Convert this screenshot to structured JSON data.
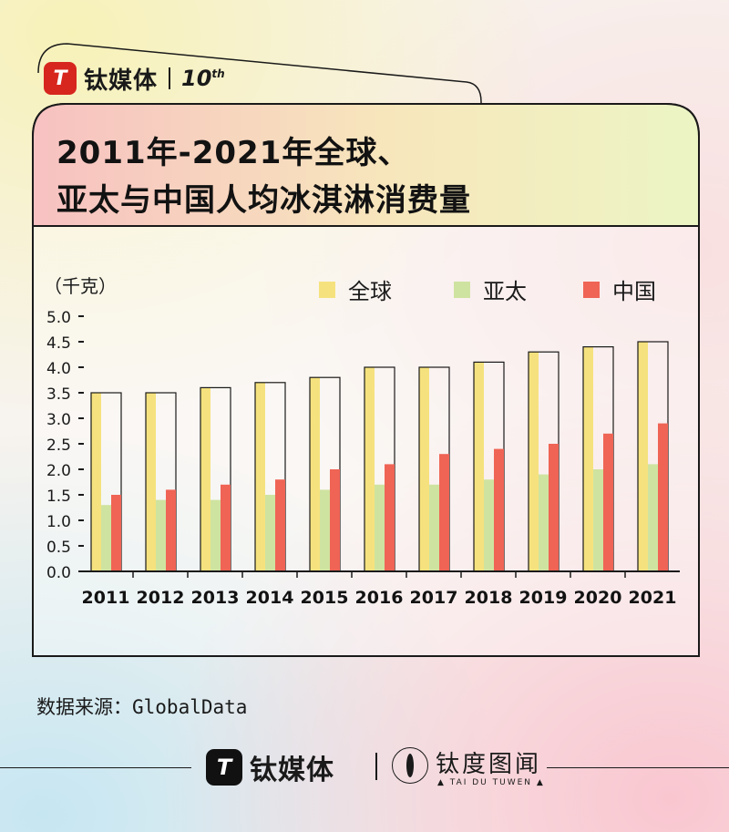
{
  "brand": {
    "name": "钛媒体",
    "anniversary": "10",
    "anniversary_sup": "th",
    "logo_glyph": "T"
  },
  "title": {
    "line1": "2011年-2021年全球、",
    "line2": "亚太与中国人均冰淇淋消费量"
  },
  "source": "数据来源：GlobalData",
  "footer": {
    "brand": "钛媒体",
    "brand2_cn": "钛度图闻",
    "brand2_en": "▲ TAI DU TUWEN ▲"
  },
  "chart_data": {
    "type": "bar",
    "unit_label": "（千克）",
    "categories": [
      "2011",
      "2012",
      "2013",
      "2014",
      "2015",
      "2016",
      "2017",
      "2018",
      "2019",
      "2020",
      "2021"
    ],
    "series": [
      {
        "name": "全球",
        "color": "#f5e27e",
        "values": [
          3.5,
          3.5,
          3.6,
          3.7,
          3.8,
          4.0,
          4.0,
          4.1,
          4.3,
          4.4,
          4.5
        ]
      },
      {
        "name": "亚太",
        "color": "#cfe3a0",
        "values": [
          1.3,
          1.4,
          1.4,
          1.5,
          1.6,
          1.7,
          1.7,
          1.8,
          1.9,
          2.0,
          2.1
        ]
      },
      {
        "name": "中国",
        "color": "#ef6455",
        "values": [
          1.5,
          1.6,
          1.7,
          1.8,
          2.0,
          2.1,
          2.3,
          2.4,
          2.5,
          2.7,
          2.9
        ]
      }
    ],
    "y_ticks": [
      "0.0",
      "0.5",
      "1.0",
      "1.5",
      "2.0",
      "2.5",
      "3.0",
      "3.5",
      "4.0",
      "4.5",
      "5.0"
    ],
    "ylim": [
      0,
      5
    ],
    "legend_position": "top-right"
  }
}
